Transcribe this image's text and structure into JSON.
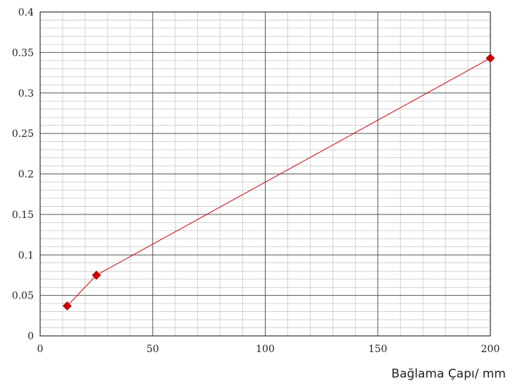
{
  "chart_data": {
    "type": "line",
    "title": "",
    "xlabel": "Bağlama Çapı/ mm",
    "ylabel": "",
    "xlim": [
      0,
      200
    ],
    "ylim": [
      0,
      0.4
    ],
    "x_ticks": [
      "0",
      "50",
      "100",
      "150",
      "200"
    ],
    "y_ticks": [
      "0",
      "0.05",
      "0.1",
      "0.15",
      "0.2",
      "0.25",
      "0.3",
      "0.35",
      "0.4"
    ],
    "grid": true,
    "legend": "none",
    "series": [
      {
        "x": [
          12,
          25,
          200
        ],
        "y": [
          0.037,
          0.075,
          0.343
        ],
        "color": "#cc0000",
        "marker": "diamond"
      }
    ]
  }
}
